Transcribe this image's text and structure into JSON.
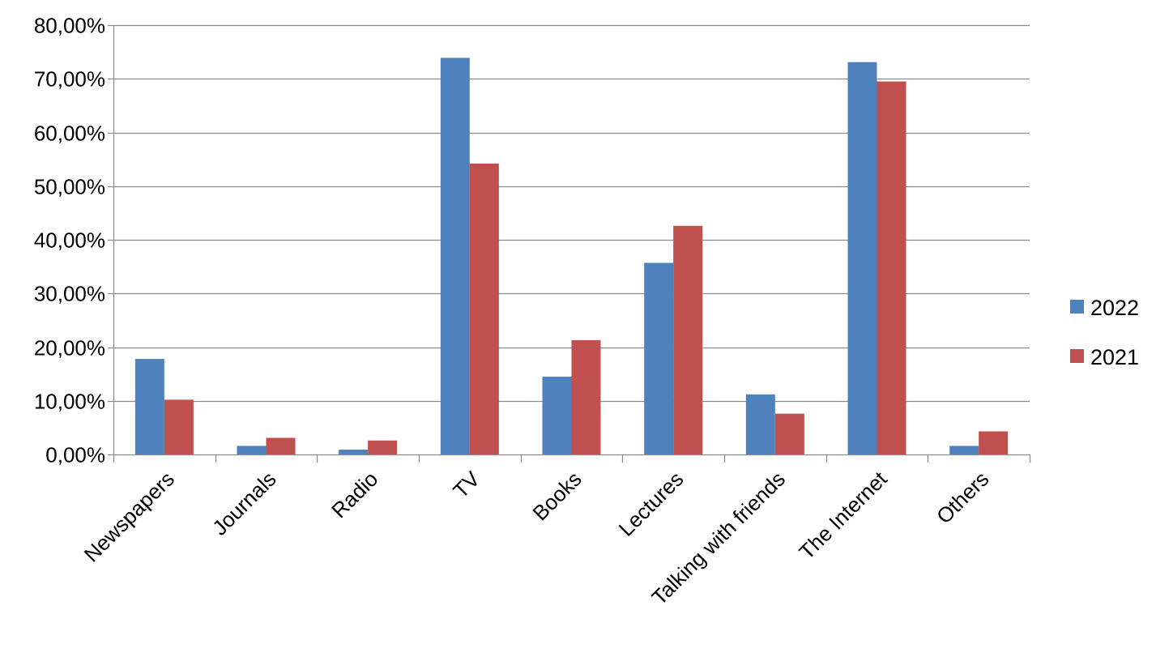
{
  "chart_data": {
    "type": "bar",
    "title": "",
    "xlabel": "",
    "ylabel": "",
    "categories": [
      "Newspapers",
      "Journals",
      "Radio",
      "TV",
      "Books",
      "Lectures",
      "Talking with friends",
      "The Internet",
      "Others"
    ],
    "series": [
      {
        "name": "2022",
        "color": "#4f81bd",
        "values": [
          17.8,
          1.6,
          0.9,
          73.9,
          14.5,
          35.7,
          11.2,
          73.1,
          1.6
        ]
      },
      {
        "name": "2021",
        "color": "#c0504d",
        "values": [
          10.2,
          3.1,
          2.6,
          54.2,
          21.3,
          42.6,
          7.6,
          69.5,
          4.3
        ]
      }
    ],
    "ylim": [
      0,
      80
    ],
    "yticks": [
      0,
      10,
      20,
      30,
      40,
      50,
      60,
      70,
      80
    ],
    "ytick_labels": [
      "0,00%",
      "10,00%",
      "20,00%",
      "30,00%",
      "40,00%",
      "50,00%",
      "60,00%",
      "70,00%",
      "80,00%"
    ],
    "grid": true,
    "legend_position": "right"
  }
}
